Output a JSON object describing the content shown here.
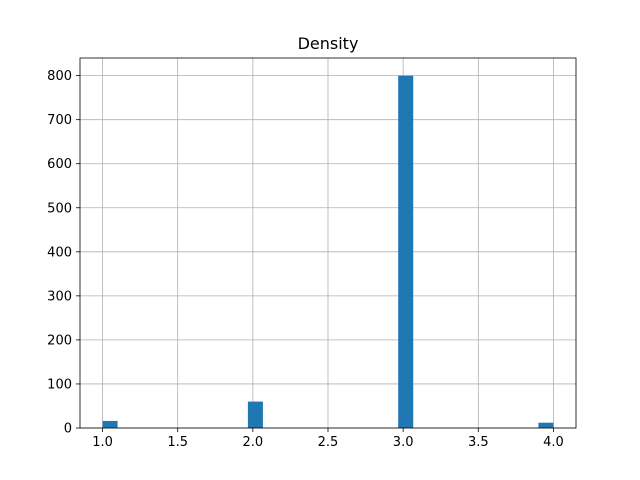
{
  "chart_data": {
    "type": "bar",
    "title": "Density",
    "xlabel": "",
    "ylabel": "",
    "xlim": [
      0.85,
      4.15
    ],
    "ylim": [
      0,
      840
    ],
    "xticks": [
      1.0,
      1.5,
      2.0,
      2.5,
      3.0,
      3.5,
      4.0
    ],
    "xtick_labels": [
      "1.0",
      "1.5",
      "2.0",
      "2.5",
      "3.0",
      "3.5",
      "4.0"
    ],
    "yticks": [
      0,
      100,
      200,
      300,
      400,
      500,
      600,
      700,
      800
    ],
    "ytick_labels": [
      "0",
      "100",
      "200",
      "300",
      "400",
      "500",
      "600",
      "700",
      "800"
    ],
    "grid": true,
    "bin_width": 0.1,
    "bins": [
      {
        "x0": 1.0,
        "x1": 1.1,
        "value": 16
      },
      {
        "x0": 1.967,
        "x1": 2.067,
        "value": 60
      },
      {
        "x0": 2.967,
        "x1": 3.067,
        "value": 800
      },
      {
        "x0": 3.9,
        "x1": 4.0,
        "value": 12
      }
    ],
    "bar_color": "#1f77b4"
  }
}
